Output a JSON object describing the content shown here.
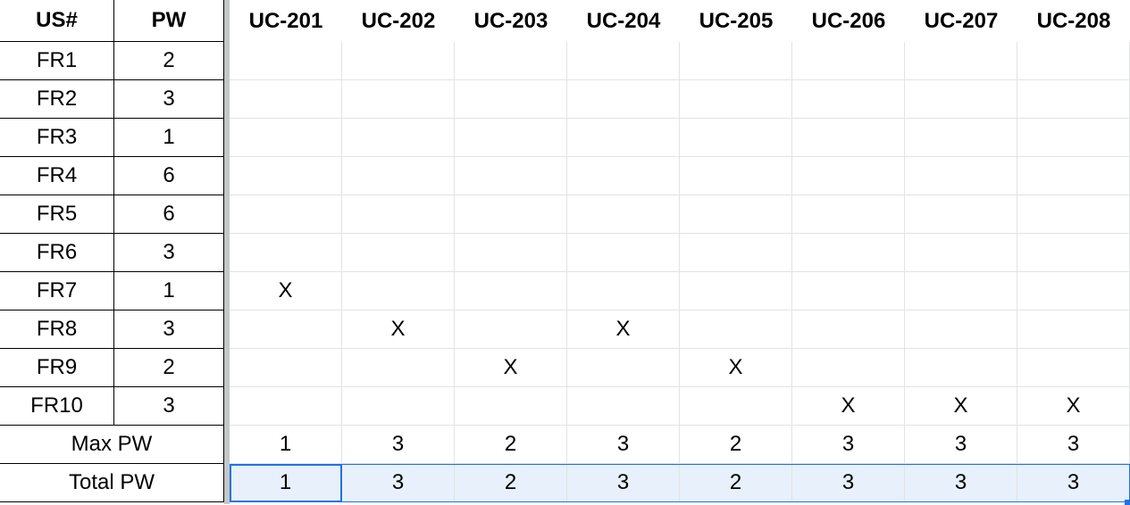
{
  "header": {
    "left": [
      "US#",
      "PW"
    ],
    "cols": [
      "UC-201",
      "UC-202",
      "UC-203",
      "UC-204",
      "UC-205",
      "UC-206",
      "UC-207",
      "UC-208"
    ]
  },
  "rows": [
    {
      "us": "FR1",
      "pw": "2",
      "marks": [
        "",
        "",
        "",
        "",
        "",
        "",
        "",
        ""
      ]
    },
    {
      "us": "FR2",
      "pw": "3",
      "marks": [
        "",
        "",
        "",
        "",
        "",
        "",
        "",
        ""
      ]
    },
    {
      "us": "FR3",
      "pw": "1",
      "marks": [
        "",
        "",
        "",
        "",
        "",
        "",
        "",
        ""
      ]
    },
    {
      "us": "FR4",
      "pw": "6",
      "marks": [
        "",
        "",
        "",
        "",
        "",
        "",
        "",
        ""
      ]
    },
    {
      "us": "FR5",
      "pw": "6",
      "marks": [
        "",
        "",
        "",
        "",
        "",
        "",
        "",
        ""
      ]
    },
    {
      "us": "FR6",
      "pw": "3",
      "marks": [
        "",
        "",
        "",
        "",
        "",
        "",
        "",
        ""
      ]
    },
    {
      "us": "FR7",
      "pw": "1",
      "marks": [
        "X",
        "",
        "",
        "",
        "",
        "",
        "",
        ""
      ]
    },
    {
      "us": "FR8",
      "pw": "3",
      "marks": [
        "",
        "X",
        "",
        "X",
        "",
        "",
        "",
        ""
      ]
    },
    {
      "us": "FR9",
      "pw": "2",
      "marks": [
        "",
        "",
        "X",
        "",
        "X",
        "",
        "",
        ""
      ]
    },
    {
      "us": "FR10",
      "pw": "3",
      "marks": [
        "",
        "",
        "",
        "",
        "",
        "X",
        "X",
        "X"
      ]
    }
  ],
  "summary": [
    {
      "label": "Max PW",
      "values": [
        "1",
        "3",
        "2",
        "3",
        "2",
        "3",
        "3",
        "3"
      ]
    },
    {
      "label": "Total PW",
      "values": [
        "1",
        "3",
        "2",
        "3",
        "2",
        "3",
        "3",
        "3"
      ]
    }
  ],
  "colors": {
    "selection": "#e8f0fb",
    "accent": "#1a73e8",
    "gridline": "#e2e3e3",
    "frozen_divider": "#c4c7c5"
  }
}
